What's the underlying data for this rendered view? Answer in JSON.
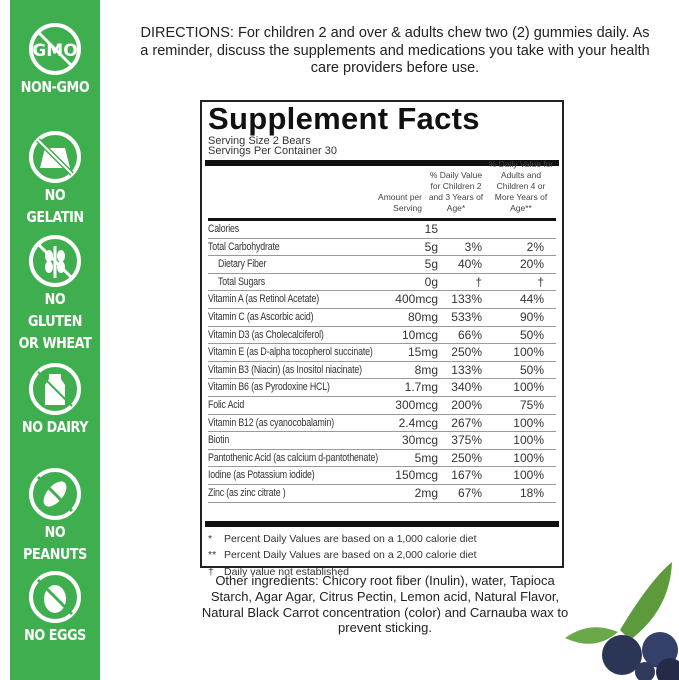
{
  "badges": [
    {
      "icon": "no-gmo-icon",
      "label": "NON-GMO",
      "icon_text": "GMO"
    },
    {
      "icon": "no-gelatin-icon",
      "label": "NO GELATIN"
    },
    {
      "icon": "no-gluten-icon",
      "label": "NO GLUTEN",
      "label2": "OR WHEAT"
    },
    {
      "icon": "no-dairy-icon",
      "label": "NO DAIRY"
    },
    {
      "icon": "no-peanuts-icon",
      "label": "NO PEANUTS"
    },
    {
      "icon": "no-eggs-icon",
      "label": "NO EGGS"
    }
  ],
  "colors": {
    "sidebar": "#3fae4f"
  },
  "directions": "DIRECTIONS: For children 2 and over & adults chew two (2) gummies daily. As a reminder, discuss the supplements and medications you take with your health care providers before use.",
  "facts": {
    "title": "Supplement Facts",
    "serving_size": "Serving Size 2 Bears",
    "servings_per_container": "Servings Per Container 30",
    "headers": {
      "amount": "Amount per Serving",
      "children": "% Daily Value for Children 2 and 3 Years of Age*",
      "adults": "% Daily Value for Adults and Children 4 or More Years of Age**"
    },
    "rows": [
      {
        "name": "Calories",
        "amount": "15",
        "children": "",
        "adults": ""
      },
      {
        "name": "Total Carbohydrate",
        "amount": "5g",
        "children": "3%",
        "adults": "2%"
      },
      {
        "name": "Dietary Fiber",
        "amount": "5g",
        "children": "40%",
        "adults": "20%"
      },
      {
        "name": "Total Sugars",
        "amount": "0g",
        "children": "†",
        "adults": "†"
      },
      {
        "name": "Vitamin A (as Retinol Acetate)",
        "amount": "400mcg",
        "children": "133%",
        "adults": "44%"
      },
      {
        "name": "Vitamin C  (as Ascorbic acid)",
        "amount": "80mg",
        "children": "533%",
        "adults": "90%"
      },
      {
        "name": "Vitamin D3 (as Cholecalciferol)",
        "amount": "10mcg",
        "children": "66%",
        "adults": "50%"
      },
      {
        "name": "Vitamin E (as D-alpha tocopherol succinate)",
        "amount": "15mg",
        "children": "250%",
        "adults": "100%"
      },
      {
        "name": "Vitamin B3 (Niacin) (as Inositol niacinate)",
        "amount": "8mg",
        "children": "133%",
        "adults": "50%"
      },
      {
        "name": "Vitamin B6 (as Pyrodoxine HCL)",
        "amount": "1.7mg",
        "children": "340%",
        "adults": "100%"
      },
      {
        "name": "Folic Acid",
        "amount": "300mcg",
        "children": "200%",
        "adults": "75%"
      },
      {
        "name": "Vitamin B12 (as cyanocobalamin)",
        "amount": "2.4mcg",
        "children": "267%",
        "adults": "100%"
      },
      {
        "name": "Biotin",
        "amount": "30mcg",
        "children": "375%",
        "adults": "100%"
      },
      {
        "name": "Pantothenic Acid (as calcium d-pantothenate)",
        "amount": "5mg",
        "children": "250%",
        "adults": "100%"
      },
      {
        "name": "Iodine (as Potassium iodide)",
        "amount": "150mcg",
        "children": "167%",
        "adults": "100%"
      },
      {
        "name": "Zinc (as zinc citrate )",
        "amount": "2mg",
        "children": "67%",
        "adults": "18%"
      }
    ],
    "footnotes": [
      {
        "mark": "*",
        "text": "Percent Daily Values are based on a 1,000 calorie diet"
      },
      {
        "mark": "**",
        "text": "Percent Daily Values are based on a 2,000 calorie diet"
      },
      {
        "mark": "†",
        "text": "Daily value not established"
      }
    ]
  },
  "other_ingredients": "Other ingredients: Chicory root fiber (Inulin), water, Tapioca Starch, Agar Agar, Citrus Pectin, Lemon acid, Natural Flavor, Natural Black Carrot concentration (color) and Carnauba wax to prevent sticking."
}
